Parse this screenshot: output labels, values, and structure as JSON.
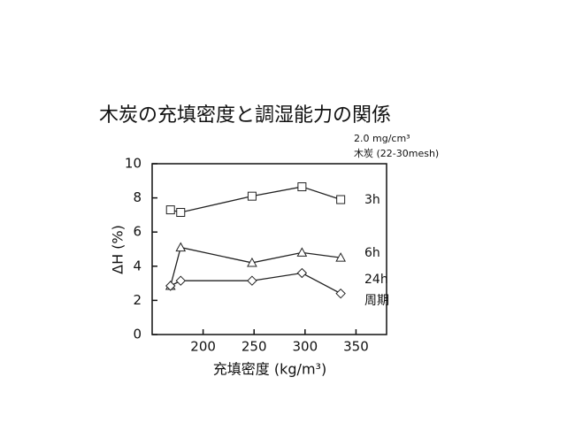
{
  "chart_data": {
    "type": "line",
    "title": "木炭の充填密度と調湿能力の関係",
    "annotations": [
      "2.0 mg/cm³",
      "木炭 (22-30mesh)"
    ],
    "series_note": "周期",
    "x_label": "充填密度 (kg/m³)",
    "y_label": "ΔH (%)",
    "x": [
      168,
      178,
      248,
      297,
      335
    ],
    "series": [
      {
        "name": "3h",
        "color": "#222222",
        "marker": "square",
        "values": [
          7.3,
          7.15,
          8.1,
          8.65,
          7.9
        ]
      },
      {
        "name": "6h",
        "color": "#222222",
        "marker": "triangle",
        "values": [
          2.85,
          5.1,
          4.2,
          4.8,
          4.5
        ]
      },
      {
        "name": "24h",
        "color": "#222222",
        "marker": "diamond",
        "values": [
          2.85,
          3.15,
          3.15,
          3.6,
          2.4
        ]
      }
    ],
    "xlim": [
      150,
      380
    ],
    "xticks": [
      200,
      250,
      300,
      350
    ],
    "ylim": [
      0,
      10
    ],
    "yticks": [
      0,
      2,
      4,
      6,
      8,
      10
    ],
    "grid": false
  }
}
